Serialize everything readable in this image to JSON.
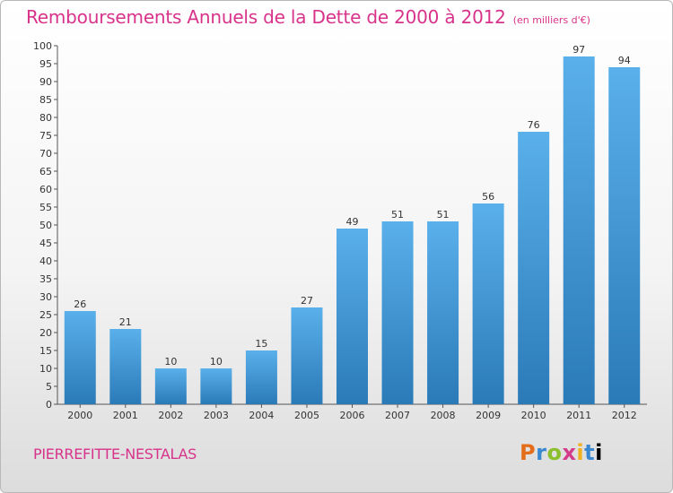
{
  "header": {
    "title": "Remboursements Annuels de la Dette de 2000 à 2012",
    "unit": "(en milliers d'€)"
  },
  "commune": "PIERREFITTE-NESTALAS",
  "logo_text": "Proxiti",
  "chart_data": {
    "type": "bar",
    "title": "Remboursements Annuels de la Dette de 2000 à 2012",
    "subtitle": "(en milliers d'€)",
    "categories": [
      "2000",
      "2001",
      "2002",
      "2003",
      "2004",
      "2005",
      "2006",
      "2007",
      "2008",
      "2009",
      "2010",
      "2011",
      "2012"
    ],
    "values": [
      26,
      21,
      10,
      10,
      15,
      27,
      49,
      51,
      51,
      56,
      76,
      97,
      94
    ],
    "ylim": [
      0,
      100
    ],
    "yticks": [
      0,
      5,
      10,
      15,
      20,
      25,
      30,
      35,
      40,
      45,
      50,
      55,
      60,
      65,
      70,
      75,
      80,
      85,
      90,
      95,
      100
    ],
    "grid": false,
    "colors": {
      "bar_light": "#5ab0ea",
      "bar_dark": "#2a7ab8",
      "title": "#d8338a"
    }
  }
}
